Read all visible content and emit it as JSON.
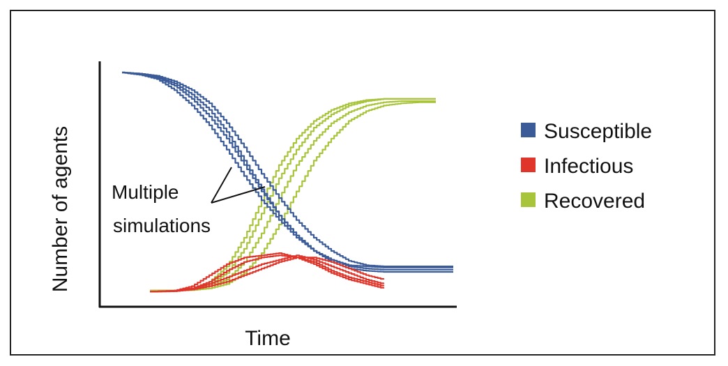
{
  "chart_data": {
    "type": "line",
    "xlabel": "Time",
    "ylabel": "Number of agents",
    "xlim": [
      0,
      100
    ],
    "ylim": [
      0,
      100
    ],
    "annotation": "Multiple simulations",
    "grid": false,
    "legend_position": "right",
    "colors": {
      "Susceptible": "#3a5a98",
      "Infectious": "#e0352a",
      "Recovered": "#a8c43a"
    },
    "series": [
      {
        "name": "Susceptible",
        "runs": [
          {
            "x": [
              5,
              10,
              15,
              20,
              25,
              30,
              35,
              40,
              45,
              50,
              55,
              60,
              65,
              70,
              75,
              80,
              85,
              90,
              95,
              100
            ],
            "y": [
              100,
              99.5,
              98,
              95,
              90,
              83,
              73,
              60,
              47,
              35,
              26,
              19,
              14,
              11,
              10,
              9.5,
              9.5,
              9.5,
              9.5,
              9.5
            ]
          },
          {
            "x": [
              5,
              10,
              15,
              20,
              25,
              30,
              35,
              40,
              45,
              50,
              55,
              60,
              65,
              70,
              75,
              80,
              85,
              90,
              95,
              100
            ],
            "y": [
              100,
              99,
              97.5,
              94,
              88,
              80,
              70,
              58,
              46,
              35,
              26,
              19,
              15,
              12,
              11,
              10.5,
              10.5,
              10.5,
              10.5,
              10.5
            ]
          },
          {
            "x": [
              5,
              10,
              15,
              20,
              25,
              30,
              35,
              40,
              45,
              50,
              55,
              60,
              65,
              70,
              75,
              80,
              85,
              90,
              95,
              100
            ],
            "y": [
              100,
              99,
              97,
              92,
              85,
              76,
              65,
              53,
              42,
              33,
              25,
              19,
              15,
              12.5,
              12,
              11.5,
              11.5,
              11.5,
              11.5,
              11.5
            ]
          },
          {
            "x": [
              5,
              10,
              15,
              20,
              25,
              30,
              35,
              40,
              45,
              50,
              55,
              60,
              65,
              70,
              75,
              80,
              85,
              90,
              95,
              100
            ],
            "y": [
              100,
              99.5,
              98.5,
              96,
              92,
              86,
              77,
              66,
              54,
              43,
              33,
              25,
              19,
              14.5,
              12.5,
              12,
              12,
              12,
              12,
              12
            ]
          }
        ]
      },
      {
        "name": "Infectious",
        "runs": [
          {
            "x": [
              13,
              20,
              25,
              30,
              35,
              40,
              45,
              50,
              55,
              60,
              65,
              70,
              75,
              80
            ],
            "y": [
              0.5,
              1,
              3,
              8,
              13,
              16,
              17,
              18,
              16,
              13,
              9,
              6,
              4,
              2
            ]
          },
          {
            "x": [
              13,
              20,
              25,
              30,
              35,
              40,
              45,
              50,
              55,
              60,
              65,
              70,
              75,
              80
            ],
            "y": [
              0.5,
              1,
              2,
              5,
              10,
              14,
              16,
              17,
              16,
              14,
              10,
              7,
              5,
              3
            ]
          },
          {
            "x": [
              13,
              20,
              25,
              30,
              35,
              40,
              45,
              50,
              55,
              60,
              65,
              70,
              75,
              80
            ],
            "y": [
              0.5,
              0.8,
              2,
              4,
              7,
              10,
              13,
              15,
              17,
              15,
              12,
              9,
              6,
              4
            ]
          },
          {
            "x": [
              13,
              20,
              25,
              30,
              35,
              40,
              45,
              50,
              55,
              60,
              65,
              70,
              75,
              80
            ],
            "y": [
              0.5,
              0.7,
              1.5,
              3,
              5,
              8,
              11,
              14,
              16,
              16,
              14,
              11,
              8,
              6
            ]
          }
        ]
      },
      {
        "name": "Recovered",
        "runs": [
          {
            "x": [
              13,
              20,
              25,
              30,
              35,
              40,
              45,
              50,
              55,
              60,
              65,
              70,
              75,
              80,
              85,
              90,
              95
            ],
            "y": [
              1,
              1,
              2,
              5,
              12,
              25,
              42,
              58,
              70,
              78,
              83,
              86,
              87.5,
              88,
              88,
              88,
              88
            ]
          },
          {
            "x": [
              13,
              20,
              25,
              30,
              35,
              40,
              45,
              50,
              55,
              60,
              65,
              70,
              75,
              80,
              85,
              90,
              95
            ],
            "y": [
              1,
              1,
              1.5,
              4,
              9,
              20,
              36,
              52,
              65,
              75,
              81,
              85,
              87,
              88,
              88,
              88,
              88
            ]
          },
          {
            "x": [
              13,
              20,
              25,
              30,
              35,
              40,
              45,
              50,
              55,
              60,
              65,
              70,
              75,
              80,
              85,
              90,
              95
            ],
            "y": [
              1,
              1,
              1.5,
              3,
              6,
              14,
              27,
              43,
              58,
              69,
              77,
              82,
              85,
              86.5,
              87,
              87,
              87
            ]
          },
          {
            "x": [
              13,
              20,
              25,
              30,
              35,
              40,
              45,
              50,
              55,
              60,
              65,
              70,
              75,
              80,
              85,
              90,
              95
            ],
            "y": [
              1,
              1,
              1.2,
              2,
              4,
              9,
              18,
              31,
              46,
              60,
              70,
              78,
              82.5,
              85,
              86,
              86.5,
              86.5
            ]
          }
        ]
      }
    ]
  }
}
